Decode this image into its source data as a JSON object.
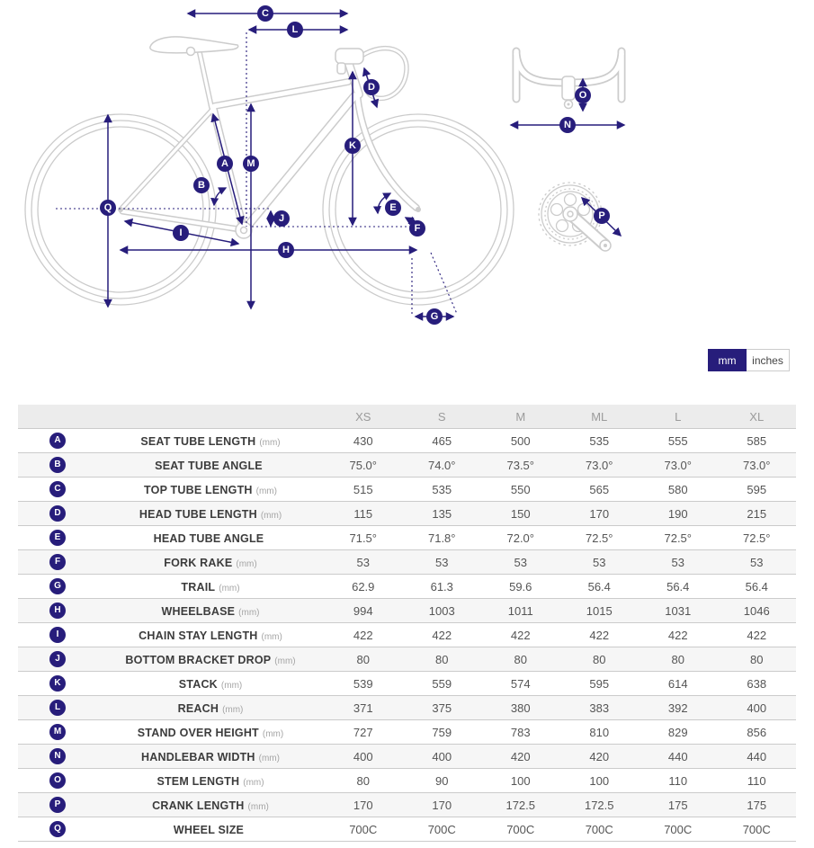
{
  "unit_toggle": {
    "mm_label": "mm",
    "inches_label": "inches",
    "selected": "mm"
  },
  "colors": {
    "accent": "#271D7B",
    "diagram_outline": "#CCCCCC"
  },
  "table": {
    "columns": [
      "XS",
      "S",
      "M",
      "ML",
      "L",
      "XL"
    ],
    "rows": [
      {
        "letter": "A",
        "label": "SEAT TUBE LENGTH",
        "unit": "(mm)",
        "values": [
          "430",
          "465",
          "500",
          "535",
          "555",
          "585"
        ]
      },
      {
        "letter": "B",
        "label": "SEAT TUBE ANGLE",
        "unit": "",
        "values": [
          "75.0°",
          "74.0°",
          "73.5°",
          "73.0°",
          "73.0°",
          "73.0°"
        ]
      },
      {
        "letter": "C",
        "label": "TOP TUBE LENGTH",
        "unit": "(mm)",
        "values": [
          "515",
          "535",
          "550",
          "565",
          "580",
          "595"
        ]
      },
      {
        "letter": "D",
        "label": "HEAD TUBE LENGTH",
        "unit": "(mm)",
        "values": [
          "115",
          "135",
          "150",
          "170",
          "190",
          "215"
        ]
      },
      {
        "letter": "E",
        "label": "HEAD TUBE ANGLE",
        "unit": "",
        "values": [
          "71.5°",
          "71.8°",
          "72.0°",
          "72.5°",
          "72.5°",
          "72.5°"
        ]
      },
      {
        "letter": "F",
        "label": "FORK RAKE",
        "unit": "(mm)",
        "values": [
          "53",
          "53",
          "53",
          "53",
          "53",
          "53"
        ]
      },
      {
        "letter": "G",
        "label": "TRAIL",
        "unit": "(mm)",
        "values": [
          "62.9",
          "61.3",
          "59.6",
          "56.4",
          "56.4",
          "56.4"
        ]
      },
      {
        "letter": "H",
        "label": "WHEELBASE",
        "unit": "(mm)",
        "values": [
          "994",
          "1003",
          "1011",
          "1015",
          "1031",
          "1046"
        ]
      },
      {
        "letter": "I",
        "label": "CHAIN STAY LENGTH",
        "unit": "(mm)",
        "values": [
          "422",
          "422",
          "422",
          "422",
          "422",
          "422"
        ]
      },
      {
        "letter": "J",
        "label": "BOTTOM BRACKET DROP",
        "unit": "(mm)",
        "values": [
          "80",
          "80",
          "80",
          "80",
          "80",
          "80"
        ]
      },
      {
        "letter": "K",
        "label": "STACK",
        "unit": "(mm)",
        "values": [
          "539",
          "559",
          "574",
          "595",
          "614",
          "638"
        ]
      },
      {
        "letter": "L",
        "label": "REACH",
        "unit": "(mm)",
        "values": [
          "371",
          "375",
          "380",
          "383",
          "392",
          "400"
        ]
      },
      {
        "letter": "M",
        "label": "STAND OVER HEIGHT",
        "unit": "(mm)",
        "values": [
          "727",
          "759",
          "783",
          "810",
          "829",
          "856"
        ]
      },
      {
        "letter": "N",
        "label": "HANDLEBAR WIDTH",
        "unit": "(mm)",
        "values": [
          "400",
          "400",
          "420",
          "420",
          "440",
          "440"
        ]
      },
      {
        "letter": "O",
        "label": "STEM LENGTH",
        "unit": "(mm)",
        "values": [
          "80",
          "90",
          "100",
          "100",
          "110",
          "110"
        ]
      },
      {
        "letter": "P",
        "label": "CRANK LENGTH",
        "unit": "(mm)",
        "values": [
          "170",
          "170",
          "172.5",
          "172.5",
          "175",
          "175"
        ]
      },
      {
        "letter": "Q",
        "label": "WHEEL SIZE",
        "unit": "",
        "values": [
          "700C",
          "700C",
          "700C",
          "700C",
          "700C",
          "700C"
        ]
      }
    ]
  }
}
